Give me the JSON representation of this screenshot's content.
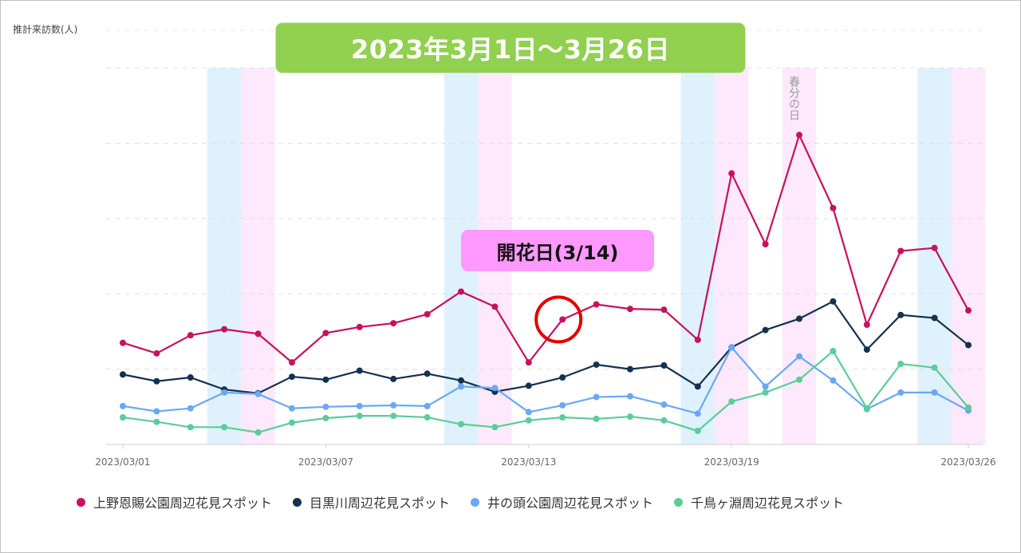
{
  "chart_data": {
    "type": "line",
    "title": "2023年3月1日～3月26日",
    "ylabel": "推計来訪数(人)",
    "xlabel": "",
    "ylim": [
      0,
      55
    ],
    "x": [
      "2023/03/01",
      "2023/03/02",
      "2023/03/03",
      "2023/03/04",
      "2023/03/05",
      "2023/03/06",
      "2023/03/07",
      "2023/03/08",
      "2023/03/09",
      "2023/03/10",
      "2023/03/11",
      "2023/03/12",
      "2023/03/13",
      "2023/03/14",
      "2023/03/15",
      "2023/03/16",
      "2023/03/17",
      "2023/03/18",
      "2023/03/19",
      "2023/03/20",
      "2023/03/21",
      "2023/03/22",
      "2023/03/23",
      "2023/03/24",
      "2023/03/25",
      "2023/03/26"
    ],
    "tick_labels": [
      "2023/03/01",
      "2023/03/07",
      "2023/03/13",
      "2023/03/19",
      "2023/03/26"
    ],
    "grid": "horizontal dashed",
    "legend_position": "bottom",
    "series": [
      {
        "name": "上野恩賜公園周辺花見スポット",
        "color": "#c8105e",
        "values": [
          13.5,
          12.1,
          14.5,
          15.3,
          14.7,
          10.9,
          14.8,
          15.6,
          16.1,
          17.3,
          20.3,
          18.3,
          10.9,
          16.6,
          18.6,
          18.0,
          17.9,
          13.9,
          36.0,
          26.6,
          41.1,
          31.4,
          15.9,
          25.7,
          26.1,
          17.8
        ]
      },
      {
        "name": "目黒川周辺花見スポット",
        "color": "#14314f",
        "values": [
          9.3,
          8.4,
          8.9,
          7.3,
          6.8,
          9.0,
          8.6,
          9.8,
          8.7,
          9.4,
          8.5,
          7.0,
          7.8,
          8.9,
          10.6,
          10.0,
          10.5,
          7.7,
          12.9,
          15.2,
          16.7,
          19.0,
          12.6,
          17.2,
          16.8,
          13.2
        ]
      },
      {
        "name": "井の頭公園周辺花見スポット",
        "color": "#6aa8f7",
        "values": [
          5.1,
          4.4,
          4.8,
          6.9,
          6.7,
          4.8,
          5.0,
          5.1,
          5.2,
          5.1,
          7.7,
          7.5,
          4.3,
          5.2,
          6.3,
          6.4,
          5.3,
          4.1,
          12.9,
          7.7,
          11.7,
          8.5,
          4.7,
          6.9,
          6.9,
          4.5
        ]
      },
      {
        "name": "千鳥ヶ淵周辺花見スポット",
        "color": "#5ccc98",
        "values": [
          3.6,
          3.0,
          2.3,
          2.3,
          1.6,
          2.9,
          3.5,
          3.8,
          3.8,
          3.6,
          2.7,
          2.3,
          3.2,
          3.6,
          3.4,
          3.7,
          3.2,
          1.8,
          5.7,
          6.9,
          8.6,
          12.4,
          4.8,
          10.7,
          10.2,
          4.9
        ]
      }
    ],
    "weekend_bands": [
      {
        "saturday": "2023/03/04",
        "sunday": "2023/03/05"
      },
      {
        "saturday": "2023/03/11",
        "sunday": "2023/03/12"
      },
      {
        "saturday": "2023/03/18",
        "sunday": "2023/03/19"
      },
      {
        "saturday": "2023/03/25",
        "sunday": "2023/03/26"
      }
    ],
    "holiday_band": {
      "date": "2023/03/21",
      "label": "春分の日"
    },
    "annotation": {
      "label": "開花日(3/14)",
      "date": "2023/03/14"
    },
    "colors": {
      "saturday_band": "#dff1fc",
      "sunday_band": "#fde9fb",
      "title_box": "#92d050",
      "bloom_box": "#ff99ff",
      "circle": "#e00000"
    }
  }
}
